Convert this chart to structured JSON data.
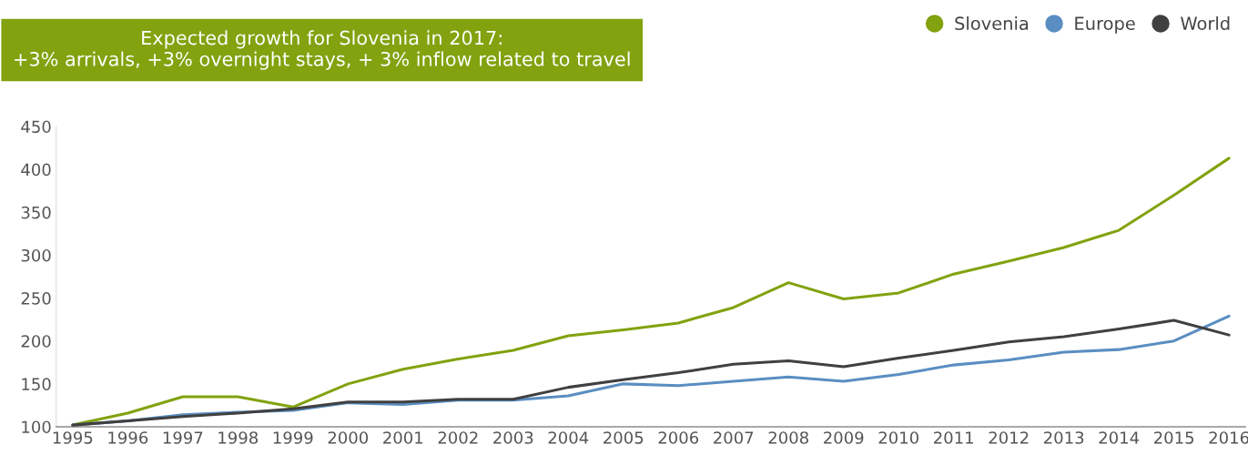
{
  "chart_data": {
    "type": "line",
    "title": "Expected growth for Slovenia in 2017:\n+3% arrivals, +3% overnight stays, + 3% inflow related to travel",
    "categories": [
      "1995",
      "1996",
      "1997",
      "1998",
      "1999",
      "2000",
      "2001",
      "2002",
      "2003",
      "2004",
      "2005",
      "2006",
      "2007",
      "2008",
      "2009",
      "2010",
      "2011",
      "2012",
      "2013",
      "2014",
      "2015",
      "2016"
    ],
    "series": [
      {
        "name": "Slovenia",
        "color": "#82a20f",
        "values": [
          102,
          116,
          135,
          135,
          123,
          150,
          167,
          179,
          189,
          206,
          213,
          221,
          239,
          268,
          249,
          256,
          278,
          293,
          309,
          329,
          370,
          413
        ]
      },
      {
        "name": "Europe",
        "color": "#5a8ec2",
        "values": [
          102,
          107,
          114,
          117,
          119,
          128,
          126,
          131,
          131,
          136,
          150,
          148,
          153,
          158,
          153,
          161,
          172,
          178,
          187,
          190,
          200,
          229
        ]
      },
      {
        "name": "World",
        "color": "#404040",
        "values": [
          102,
          107,
          112,
          116,
          121,
          129,
          129,
          132,
          132,
          146,
          155,
          163,
          173,
          177,
          170,
          180,
          189,
          199,
          205,
          214,
          224,
          207
        ]
      }
    ],
    "ylim": [
      100,
      450
    ],
    "yticks": [
      100,
      150,
      200,
      250,
      300,
      350,
      400,
      450
    ],
    "grid": false,
    "legend": "top right",
    "marker": "none",
    "line_style": "solid"
  }
}
